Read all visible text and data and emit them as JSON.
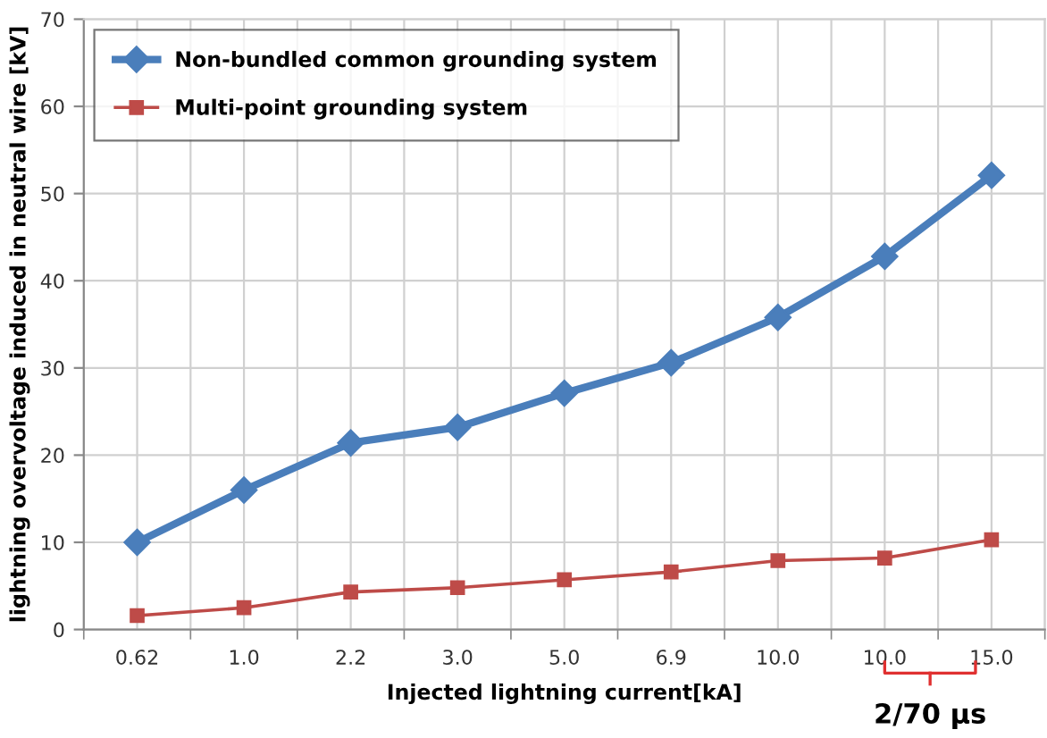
{
  "chart_data": {
    "type": "line",
    "xlabel": "Injected lightning current[kA]",
    "ylabel": "lightning overvoltage induced in neutral wire [kV]",
    "categories": [
      "0.62",
      "1.0",
      "2.2",
      "3.0",
      "5.0",
      "6.9",
      "10.0",
      "10.0",
      "15.0"
    ],
    "series": [
      {
        "name": "Non-bundled common grounding system",
        "color": "#4a7ebb",
        "marker": "diamond",
        "values": [
          10.0,
          16.0,
          21.4,
          23.2,
          27.1,
          30.6,
          35.8,
          42.8,
          52.1
        ]
      },
      {
        "name": "Multi-point grounding system",
        "color": "#be4b48",
        "marker": "square",
        "values": [
          1.6,
          2.5,
          4.3,
          4.8,
          5.7,
          6.6,
          7.9,
          8.2,
          10.3
        ]
      }
    ],
    "ylim": [
      0,
      70
    ],
    "yticks": [
      0,
      10,
      20,
      30,
      40,
      50,
      60,
      70
    ],
    "grid": true,
    "legend": "top left",
    "annotations": [
      "2/70 μs"
    ]
  }
}
